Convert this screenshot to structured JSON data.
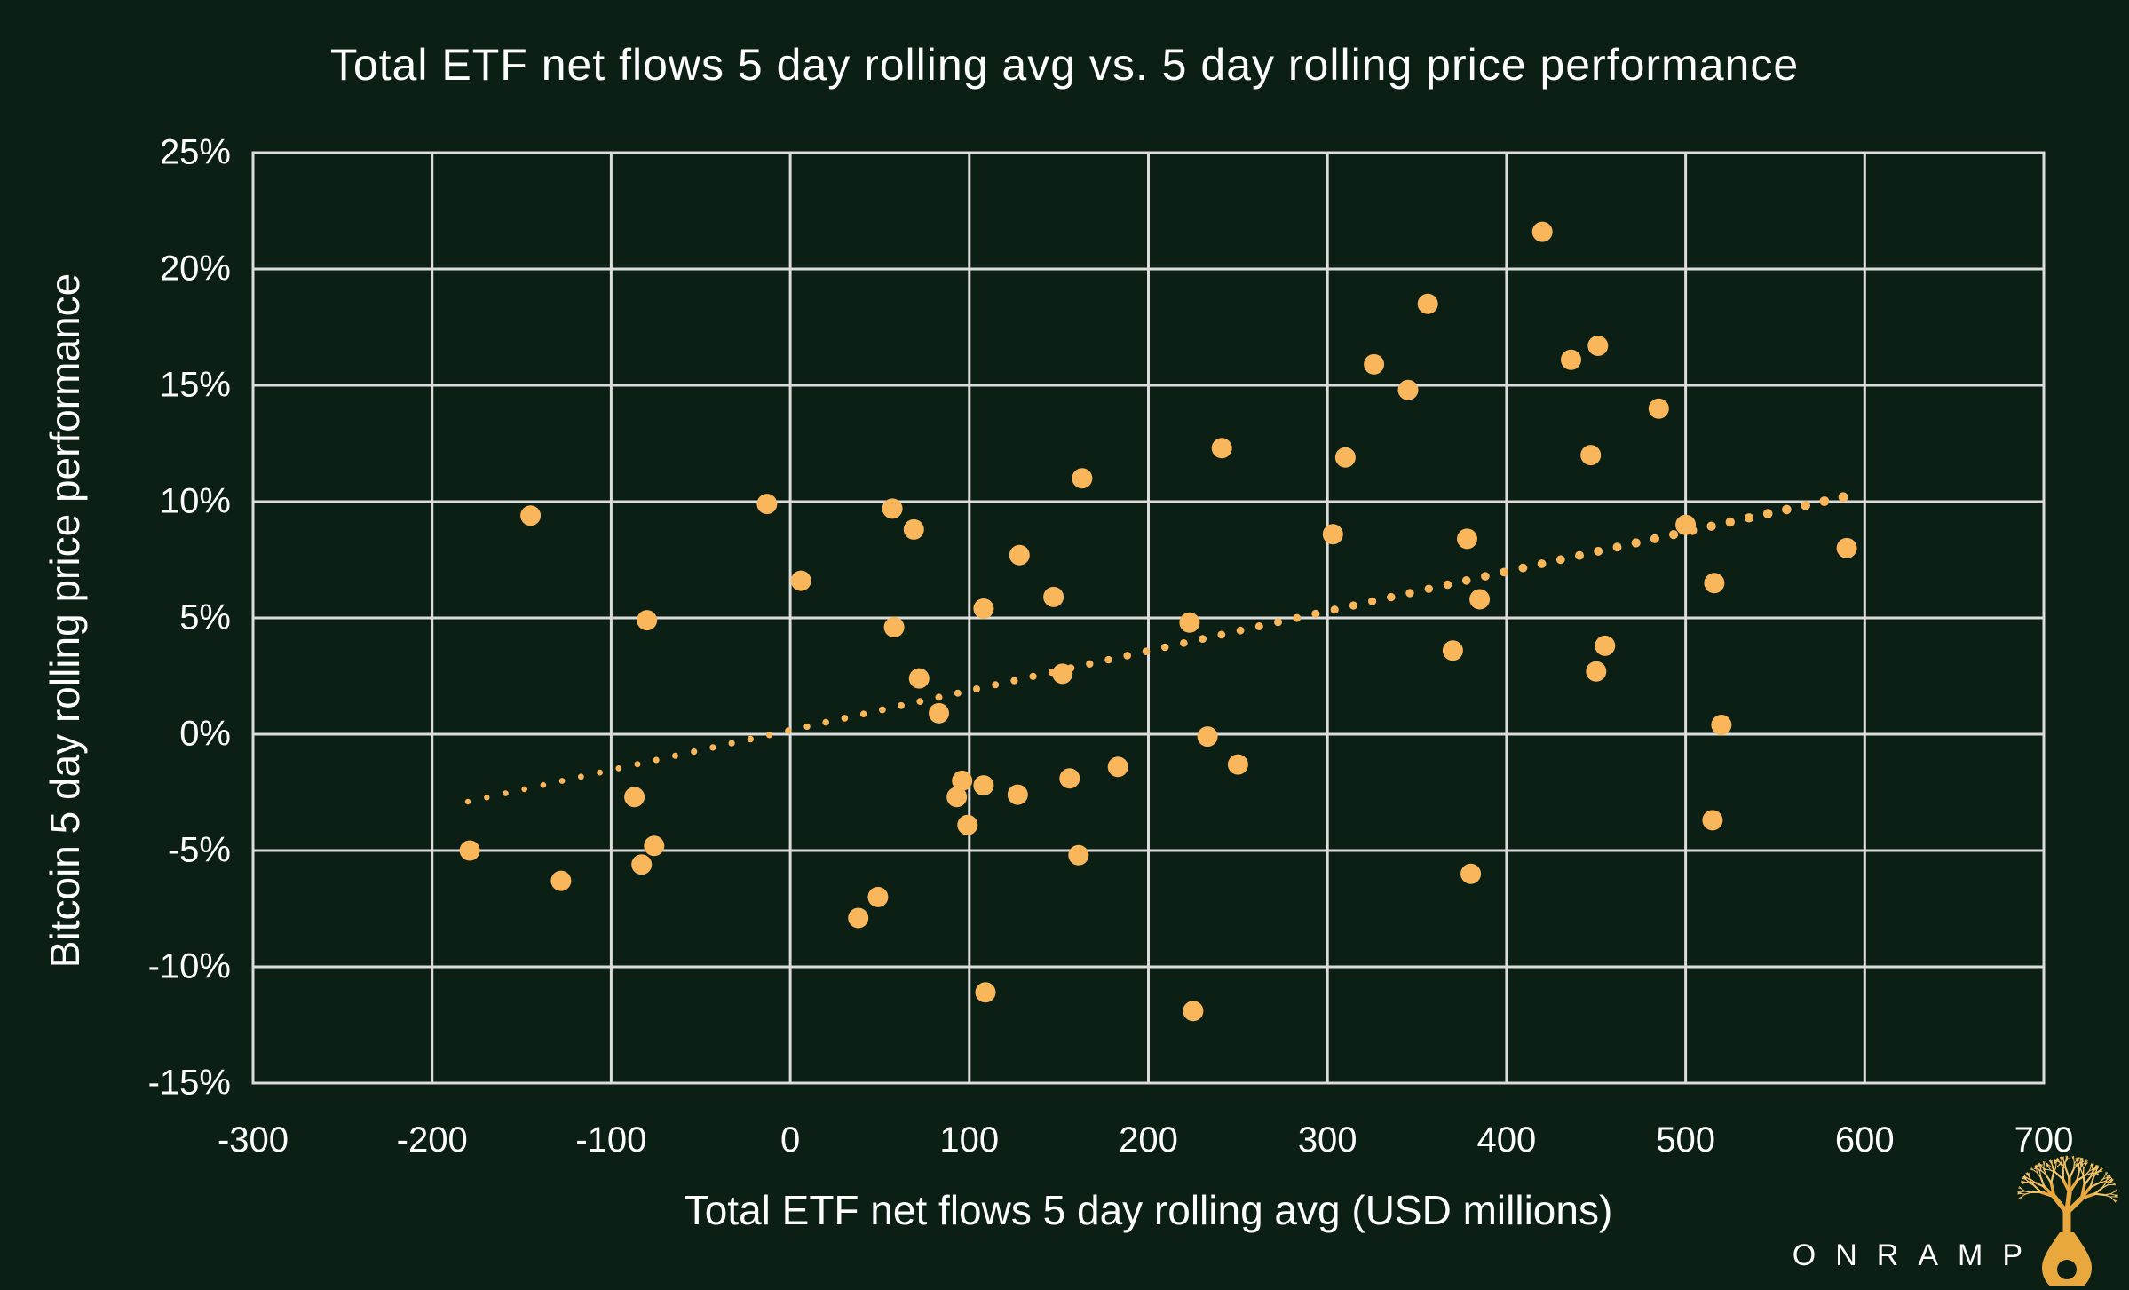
{
  "chart_data": {
    "type": "scatter",
    "title": "Total ETF net flows 5 day rolling avg vs. 5 day rolling price performance",
    "xlabel": "Total ETF net flows 5 day rolling avg (USD millions)",
    "ylabel": "Bitcoin 5 day rolling price performance",
    "xlim": [
      -300,
      700
    ],
    "ylim": [
      -15,
      25
    ],
    "x_ticks": [
      -300,
      -200,
      -100,
      0,
      100,
      200,
      300,
      400,
      500,
      600,
      700
    ],
    "y_ticks": [
      -15,
      -10,
      -5,
      0,
      5,
      10,
      15,
      20,
      25
    ],
    "y_tick_suffix": "%",
    "grid": true,
    "legend": false,
    "points": [
      [
        -145,
        9.4
      ],
      [
        -13,
        9.9
      ],
      [
        57,
        9.7
      ],
      [
        69,
        8.8
      ],
      [
        128,
        7.7
      ],
      [
        163,
        11.0
      ],
      [
        6,
        6.6
      ],
      [
        -80,
        4.9
      ],
      [
        108,
        5.4
      ],
      [
        147,
        5.9
      ],
      [
        420,
        21.6
      ],
      [
        356,
        18.5
      ],
      [
        326,
        15.9
      ],
      [
        436,
        16.1
      ],
      [
        451,
        16.7
      ],
      [
        345,
        14.8
      ],
      [
        485,
        14.0
      ],
      [
        241,
        12.3
      ],
      [
        310,
        11.9
      ],
      [
        447,
        12.0
      ],
      [
        500,
        9.0
      ],
      [
        303,
        8.6
      ],
      [
        378,
        8.4
      ],
      [
        385,
        5.8
      ],
      [
        516,
        6.5
      ],
      [
        590,
        8.0
      ],
      [
        58,
        4.6
      ],
      [
        72,
        2.4
      ],
      [
        83,
        0.9
      ],
      [
        223,
        4.8
      ],
      [
        370,
        3.6
      ],
      [
        455,
        3.8
      ],
      [
        450,
        2.7
      ],
      [
        152,
        2.6
      ],
      [
        233,
        -0.1
      ],
      [
        250,
        -1.3
      ],
      [
        520,
        0.4
      ],
      [
        -87,
        -2.7
      ],
      [
        -76,
        -4.8
      ],
      [
        -83,
        -5.6
      ],
      [
        -179,
        -5.0
      ],
      [
        -128,
        -6.3
      ],
      [
        49,
        -7.0
      ],
      [
        38,
        -7.9
      ],
      [
        96,
        -2.0
      ],
      [
        108,
        -2.2
      ],
      [
        93,
        -2.7
      ],
      [
        127,
        -2.6
      ],
      [
        156,
        -1.9
      ],
      [
        183,
        -1.4
      ],
      [
        99,
        -3.9
      ],
      [
        161,
        -5.2
      ],
      [
        515,
        -3.7
      ],
      [
        380,
        -6.0
      ],
      [
        109,
        -11.1
      ],
      [
        225,
        -11.9
      ]
    ],
    "trendline": {
      "style": "dotted",
      "x_start": -180,
      "y_start": -2.9,
      "x_end": 588,
      "y_end": 10.2,
      "num_dots": 74
    }
  },
  "logo": {
    "text": "ONRAMP"
  },
  "colors": {
    "background": "#0c1f15",
    "dot": "#f9b65a",
    "grid": "#dcdcdc",
    "text": "#fcfcfc",
    "logo_gold": "#e9a83e",
    "logo_gold_light": "#f4c469"
  }
}
